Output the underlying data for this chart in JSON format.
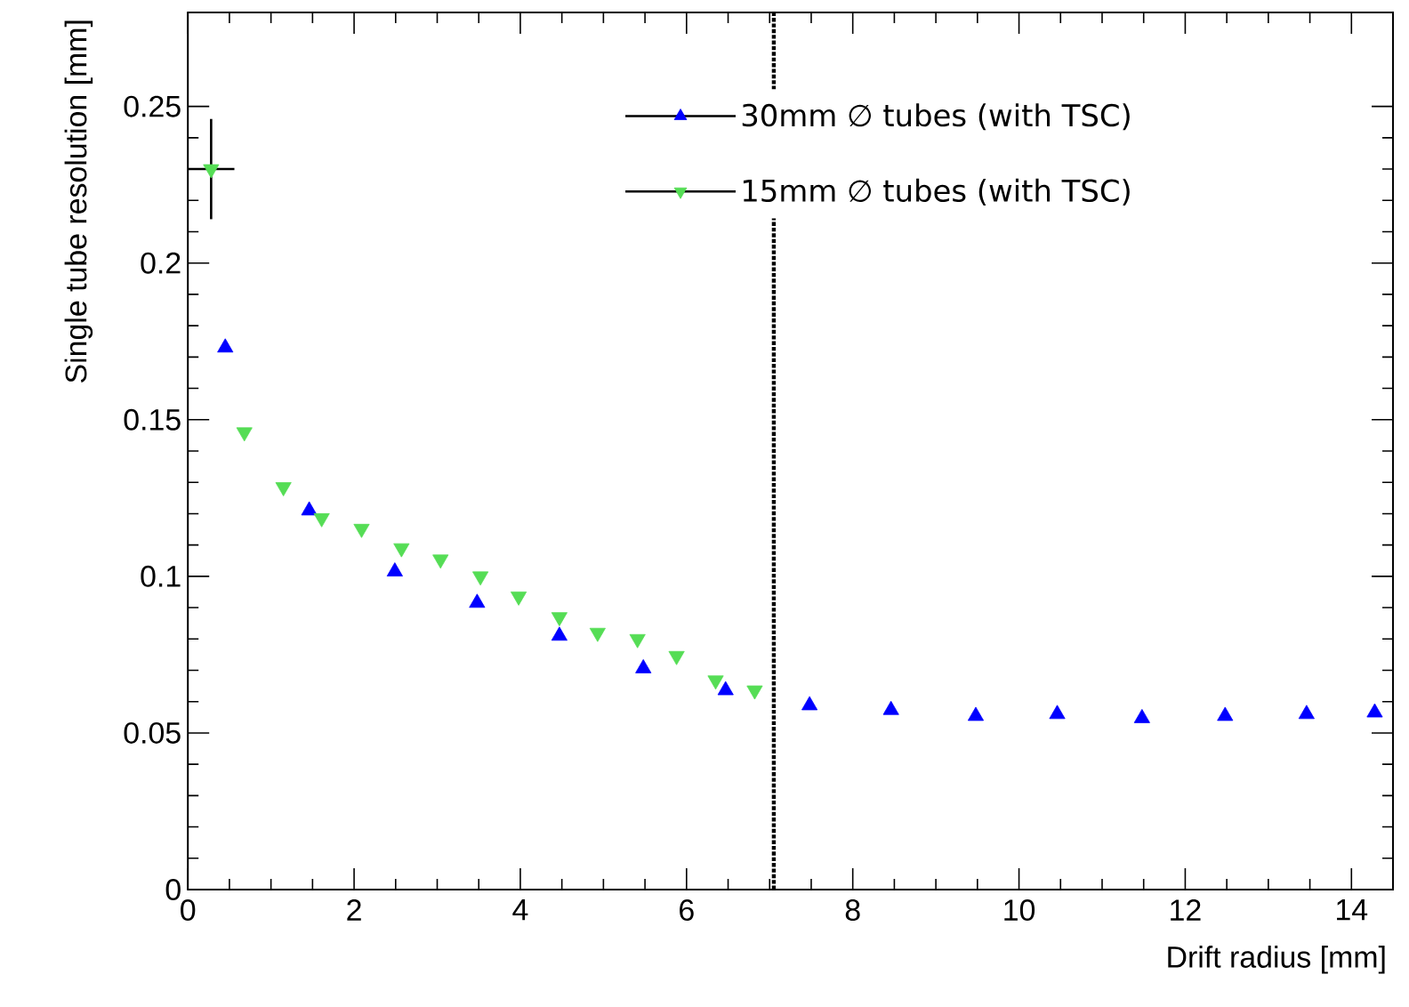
{
  "chart_data": {
    "type": "scatter",
    "xlabel": "Drift radius [mm]",
    "ylabel": "Single tube resolution [mm]",
    "xlim": [
      0,
      14.5
    ],
    "ylim": [
      0,
      0.28
    ],
    "xticks": [
      0,
      2,
      4,
      6,
      8,
      10,
      12,
      14
    ],
    "yticks": [
      0,
      0.05,
      0.1,
      0.15,
      0.2,
      0.25
    ],
    "grid": false,
    "legend": "top right",
    "series": [
      {
        "name": "30mm ∅ tubes (with TSC)",
        "color": "#0000ff",
        "marker": "triangle",
        "x": [
          0.45,
          1.46,
          2.49,
          3.48,
          4.47,
          5.48,
          6.47,
          7.48,
          8.46,
          9.48,
          10.46,
          11.48,
          12.48,
          13.46,
          14.28
        ],
        "values": [
          0.173,
          0.121,
          0.1015,
          0.0915,
          0.081,
          0.0706,
          0.0636,
          0.0588,
          0.0573,
          0.0554,
          0.056,
          0.0547,
          0.0554,
          0.056,
          0.0565
        ]
      },
      {
        "name": "15mm ∅ tubes (with TSC)",
        "color": "#55dd55",
        "marker": "triangle-down",
        "x": [
          0.28,
          0.68,
          1.15,
          1.61,
          2.09,
          2.57,
          3.04,
          3.52,
          3.98,
          4.47,
          4.93,
          5.41,
          5.88,
          6.35,
          6.82
        ],
        "values": [
          0.23,
          0.146,
          0.1285,
          0.1186,
          0.1152,
          0.109,
          0.1054,
          0.1,
          0.0936,
          0.087,
          0.082,
          0.08,
          0.0746,
          0.0668,
          0.0636
        ],
        "errors": [
          0.016,
          null,
          null,
          null,
          null,
          null,
          null,
          null,
          null,
          null,
          null,
          null,
          null,
          null,
          null
        ],
        "xerrors": [
          0.28,
          null,
          null,
          null,
          null,
          null,
          null,
          null,
          null,
          null,
          null,
          null,
          null,
          null,
          null
        ]
      }
    ],
    "ref_lines": [
      {
        "axis": "x",
        "value": 7.05,
        "color": "#000000",
        "line_style": "dotted"
      }
    ]
  }
}
